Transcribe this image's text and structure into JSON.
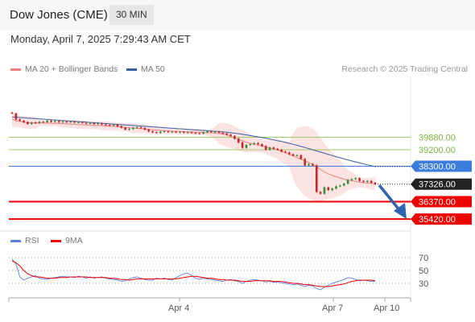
{
  "header": {
    "instrument": "Dow Jones (CME)",
    "timeframe": "30 MIN"
  },
  "subtitle": "Monday, April 7, 2025 7:29:43 AM CET",
  "legend": {
    "bollinger": "MA 20 + Bollinger Bands",
    "ma50": "MA 50",
    "rsi": "RSI",
    "rsi_ma": "9MA"
  },
  "credit": "Research © 2025 Trading Central",
  "colors": {
    "ma20": "#f08080",
    "ma50": "#3a5fa0",
    "resistance": "#9ccc65",
    "current": "#3b7ddd",
    "support": "#ee0000",
    "candle_up": "#2f8f3a",
    "candle_down": "#c62828",
    "rsi": "#5b7fdb",
    "rsi_ma": "#ee0000",
    "arrow": "#2e64b0"
  },
  "chart_data": [
    {
      "type": "candlestick",
      "title": "Dow Jones (CME)",
      "ylim": [
        35100,
        41400
      ],
      "x_ticks": [
        "Apr 4",
        "Apr 7",
        "Apr 10"
      ],
      "levels": [
        {
          "label": "39880.00",
          "value": 39880,
          "kind": "resistance"
        },
        {
          "label": "39200.00",
          "value": 39200,
          "kind": "resistance"
        },
        {
          "label": "38300.00",
          "value": 38300,
          "kind": "current"
        },
        {
          "label": "36370.00",
          "value": 36370,
          "kind": "support"
        },
        {
          "label": "35420.00",
          "value": 35420,
          "kind": "support"
        }
      ],
      "last_price": {
        "label": "37326.00",
        "value": 37326
      },
      "close": [
        41180,
        40850,
        40780,
        40700,
        40600,
        40680,
        40650,
        40720,
        40700,
        40780,
        40720,
        40760,
        40700,
        40740,
        40700,
        40720,
        40680,
        40700,
        40660,
        40620,
        40650,
        40600,
        40640,
        40580,
        40550,
        40520,
        40560,
        40480,
        40400,
        40300,
        40330,
        40400,
        40420,
        40380,
        40300,
        40200,
        40150,
        40120,
        40180,
        40200,
        40160,
        40180,
        40150,
        40170,
        40130,
        40150,
        40120,
        40100,
        40080,
        40150,
        40200,
        40170,
        40180,
        40130,
        40080,
        40020,
        39950,
        39800,
        39600,
        39300,
        39460,
        39500,
        39560,
        39500,
        39400,
        39200,
        39320,
        39250,
        39200,
        39100,
        39050,
        38950,
        38880,
        38900,
        38700,
        38350,
        38420,
        38350,
        36900,
        36800,
        37150,
        37000,
        37080,
        37200,
        37250,
        37350,
        37550,
        37600,
        37650,
        37500,
        37450,
        37500,
        37400,
        37326
      ],
      "ma20": [
        40880,
        40780,
        40740,
        40700,
        40680,
        40670,
        40660,
        40660,
        40655,
        40650,
        40645,
        40640,
        40630,
        40625,
        40615,
        40600,
        40585,
        40570,
        40560,
        40550,
        40540,
        40530,
        40520,
        40510,
        40495,
        40480,
        40470,
        40460,
        40440,
        40420,
        40400,
        40380,
        40365,
        40350,
        40330,
        40310,
        40290,
        40270,
        40250,
        40240,
        40225,
        40210,
        40200,
        40190,
        40180,
        40175,
        40170,
        40160,
        40150,
        40140,
        40130,
        40120,
        40100,
        40080,
        40050,
        40000,
        39930,
        39850,
        39760,
        39680,
        39610,
        39550,
        39500,
        39450,
        39400,
        39350,
        39300,
        39240,
        39180,
        39110,
        39030,
        38950,
        38860,
        38770,
        38680,
        38590,
        38500,
        38400,
        38270,
        38120,
        37990,
        37890,
        37800,
        37730,
        37660,
        37600,
        37550,
        37510,
        37470,
        37430,
        37400,
        37380,
        37360,
        37350
      ],
      "ma50": [
        40990,
        40975,
        40955,
        40940,
        40925,
        40910,
        40895,
        40880,
        40865,
        40850,
        40835,
        40820,
        40805,
        40790,
        40775,
        40760,
        40745,
        40730,
        40715,
        40700,
        40685,
        40670,
        40655,
        40640,
        40625,
        40610,
        40595,
        40580,
        40565,
        40550,
        40535,
        40520,
        40505,
        40490,
        40475,
        40460,
        40445,
        40430,
        40415,
        40400,
        40385,
        40370,
        40355,
        40340,
        40325,
        40310,
        40295,
        40280,
        40265,
        40250,
        40235,
        40220,
        40205,
        40190,
        40170,
        40150,
        40125,
        40100,
        40070,
        40040,
        40005,
        39970,
        39935,
        39900,
        39860,
        39820,
        39780,
        39740,
        39695,
        39650,
        39600,
        39550,
        39495,
        39440,
        39380,
        39320,
        39260,
        39200,
        39135,
        39070,
        39005,
        38940,
        38880,
        38820,
        38760,
        38700,
        38645,
        38590,
        38535,
        38480,
        38430,
        38380,
        38330,
        38280
      ]
    },
    {
      "type": "line",
      "title": "RSI",
      "y_ticks": [
        "70",
        "50",
        "30"
      ],
      "ylim": [
        0,
        100
      ],
      "series": [
        {
          "name": "RSI",
          "values": [
            68,
            60,
            40,
            35,
            38,
            40,
            42,
            38,
            37,
            36,
            38,
            39,
            40,
            41,
            40,
            40,
            39,
            41,
            40,
            38,
            40,
            38,
            39,
            40,
            38,
            37,
            36,
            35,
            33,
            34,
            37,
            39,
            40,
            38,
            36,
            35,
            35,
            38,
            37,
            38,
            36,
            35,
            39,
            42,
            45,
            46,
            42,
            38,
            36,
            38,
            37,
            36,
            35,
            34,
            33,
            35,
            36,
            34,
            33,
            30,
            33,
            35,
            36,
            35,
            34,
            32,
            33,
            32,
            32,
            31,
            30,
            29,
            28,
            29,
            27,
            25,
            27,
            26,
            22,
            20,
            24,
            27,
            30,
            32,
            34,
            36,
            39,
            38,
            36,
            34,
            35,
            34,
            33,
            33
          ]
        },
        {
          "name": "9MA",
          "values": [
            65,
            62,
            57,
            50,
            45,
            42,
            40,
            40,
            39,
            38,
            38,
            38,
            39,
            39,
            39,
            40,
            40,
            40,
            40,
            40,
            39,
            39,
            39,
            39,
            39,
            38,
            38,
            37,
            36,
            36,
            35,
            36,
            37,
            37,
            37,
            37,
            37,
            37,
            37,
            37,
            37,
            37,
            37,
            38,
            39,
            40,
            41,
            41,
            40,
            39,
            38,
            38,
            37,
            36,
            36,
            35,
            35,
            35,
            34,
            33,
            33,
            33,
            34,
            34,
            34,
            34,
            34,
            33,
            33,
            33,
            32,
            31,
            30,
            30,
            29,
            28,
            28,
            27,
            26,
            25,
            25,
            25,
            26,
            27,
            28,
            29,
            31,
            33,
            34,
            35,
            35,
            35,
            35,
            34
          ]
        }
      ]
    }
  ]
}
